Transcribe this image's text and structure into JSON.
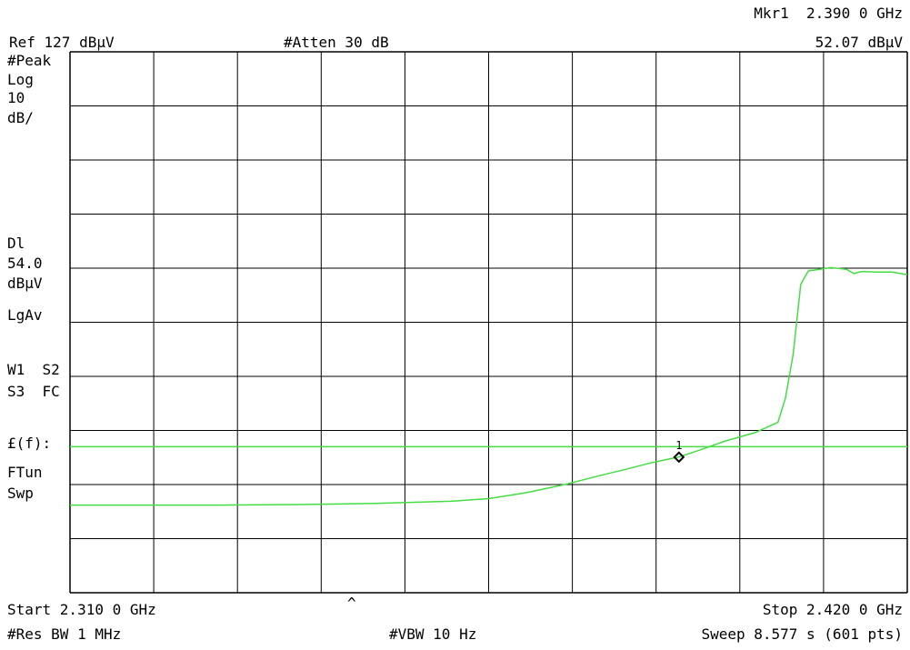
{
  "header": {
    "marker_label": "Mkr1  2.390 0 GHz",
    "marker_level": "52.07 dBµV",
    "ref_level": "Ref 127 dBµV",
    "attenuation": "#Atten 30 dB"
  },
  "left_panel": {
    "detector": "#Peak",
    "scale_type": "Log",
    "scale_value": "10",
    "scale_unit": "dB/",
    "display_line_label": "Dl",
    "display_line_value": "54.0",
    "display_line_unit": "dBµV",
    "averaging": "LgAv",
    "traces_line1": "W1  S2",
    "traces_line2": "S3  FC",
    "function_label": "£(f):",
    "function_mode": "FTun",
    "sweep_mode": "Swp"
  },
  "footer": {
    "start": "Start 2.310 0 GHz",
    "center_mark": "^",
    "stop": "Stop 2.420 0 GHz",
    "rbw": "#Res BW 1 MHz",
    "vbw": "#VBW 10 Hz",
    "sweep": "Sweep 8.577 s (601 pts)"
  },
  "colors": {
    "trace": "#44dd44",
    "display_line": "#44dd44",
    "grid": "#000000",
    "background": "#ffffff"
  },
  "chart_data": {
    "type": "line",
    "title": "",
    "xlabel": "",
    "ylabel": "",
    "x_unit": "GHz",
    "y_unit": "dBµV",
    "xlim": [
      2.31,
      2.42
    ],
    "ylim": [
      27,
      127
    ],
    "x_divisions": 10,
    "y_divisions": 10,
    "grid": true,
    "display_line": 54.0,
    "marker": {
      "label": "1",
      "x": 2.39,
      "y": 52.07
    },
    "series": [
      {
        "x": [
          2.31,
          2.32,
          2.33,
          2.34,
          2.35,
          2.36,
          2.365,
          2.37,
          2.375,
          2.38,
          2.383,
          2.386,
          2.389,
          2.39,
          2.393,
          2.396,
          2.4,
          2.403,
          2.404,
          2.405,
          2.406,
          2.407,
          2.41,
          2.412,
          2.413,
          2.414,
          2.416,
          2.418,
          2.42
        ],
        "y": [
          43.2,
          43.2,
          43.2,
          43.3,
          43.5,
          43.9,
          44.4,
          45.5,
          47.0,
          48.8,
          49.8,
          50.9,
          51.8,
          52.1,
          53.5,
          55.0,
          56.6,
          58.5,
          63.0,
          71.0,
          84.0,
          86.5,
          87.1,
          86.8,
          86.0,
          86.4,
          86.3,
          86.3,
          85.8
        ]
      }
    ]
  }
}
